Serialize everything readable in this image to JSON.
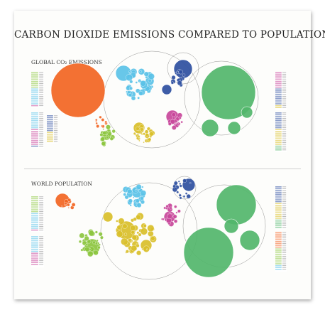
{
  "poster": {
    "title": "CARBON DIOXIDE EMISSIONS COMPARED TO POPULATION"
  },
  "sections": {
    "emissions": {
      "title": "GLOBAL CO₂ EMISSIONS"
    },
    "population": {
      "title": "WORLD POPULATION"
    }
  },
  "colors": {
    "asia": "#f26522",
    "europe": "#5bc2e7",
    "north_america": "#2e4f9f",
    "latin_america": "#d9bf2a",
    "africa": "#c8479a",
    "middle_east": "#8cc63f",
    "background_large": "#52b66b"
  }
}
